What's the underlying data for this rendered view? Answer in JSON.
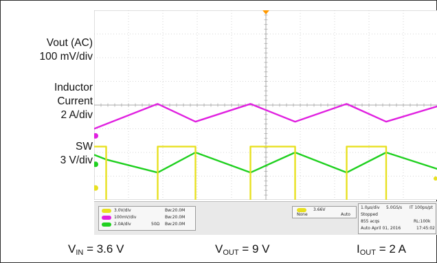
{
  "chart_data": {
    "type": "line",
    "title": "",
    "xlabel": "",
    "ylabel": "",
    "time_per_div_us": 1.0,
    "grid": true,
    "channels": [
      {
        "name": "Vout (AC)",
        "scale": "100 mV/div",
        "color": "#e020e0",
        "ground_div": -1.3,
        "x": [
          0,
          0.35,
          1.85,
          2.95,
          4.55,
          5.85,
          7.35,
          8.5,
          10
        ],
        "y": [
          -1.0,
          -0.8,
          0.05,
          -0.7,
          0.05,
          -0.7,
          0.05,
          -0.7,
          -0.05
        ]
      },
      {
        "name": "Inductor Current",
        "scale": "2 A/div",
        "color": "#1fd01f",
        "ground_div": -2.5,
        "x": [
          0,
          0.35,
          1.85,
          2.95,
          4.55,
          5.85,
          7.35,
          8.5,
          10
        ],
        "y": [
          -2.1,
          -2.3,
          -2.85,
          -2.0,
          -2.85,
          -2.0,
          -2.85,
          -2.0,
          -2.7
        ]
      },
      {
        "name": "SW",
        "scale": "3 V/div",
        "color": "#e8e020",
        "ground_div": -3.5,
        "x": [
          0,
          0.35,
          0.35,
          1.85,
          1.85,
          2.95,
          2.95,
          4.55,
          4.55,
          5.85,
          5.85,
          7.35,
          7.35,
          8.5,
          8.5,
          10
        ],
        "y": [
          -1.75,
          -1.75,
          -4.45,
          -4.45,
          -1.75,
          -1.75,
          -4.45,
          -4.45,
          -1.75,
          -1.75,
          -4.45,
          -4.45,
          -1.75,
          -1.75,
          -4.45,
          -4.45
        ]
      }
    ]
  },
  "labels": {
    "vout_line1": "Vout (AC)",
    "vout_line2": "100 mV/div",
    "il_line1": "Inductor",
    "il_line2": "Current",
    "il_line3": "2 A/div",
    "sw_line1": "SW",
    "sw_line2": "3 V/div"
  },
  "conditions": {
    "vin_main": "V",
    "vin_sub": "IN",
    "vin_value": " = 3.6 V",
    "vout_main": "V",
    "vout_sub": "OUT",
    "vout_value": " = 9 V",
    "iout_main": "I",
    "iout_sub": "OUT",
    "iout_value": " = 2 A"
  },
  "status": {
    "ch1_scale": "3.0V/div",
    "ch1_bw": "Bw:20.0M",
    "ch2_scale": "100mV/div",
    "ch2_bw": "Bw:20.0M",
    "ch3_scale": "2.0A/div",
    "ch3_imp": "50Ω",
    "ch3_bw": "Bw:20.0M",
    "trigger_level": "3.66V",
    "trigger_mode_left": "None",
    "trigger_mode_right": "Auto",
    "timebase": "1.0µs/div",
    "sample_rate": "5.0GS/s",
    "resolution": "IT  100ps/pt",
    "run_state": "Stopped",
    "acqs": "855 acqs",
    "record": "RL:100k",
    "date": "Auto   April 01, 2016",
    "time": "17:45:02",
    "colors": {
      "ch1": "#e8e020",
      "ch2": "#e020e0",
      "ch3": "#1fd01f"
    }
  }
}
